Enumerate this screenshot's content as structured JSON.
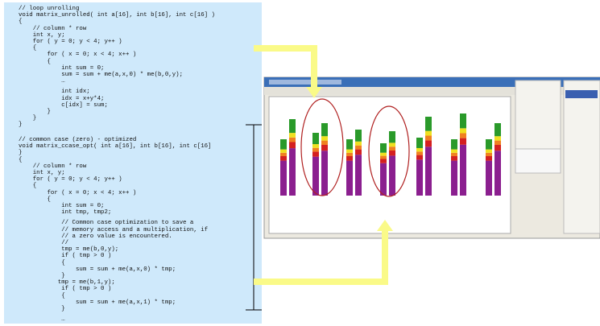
{
  "listings": [
    {
      "groups": [
        [
          "// loop unrolling",
          "void matrix_unrolled( int a[16], int b[16], int c[16] )",
          "{",
          "    // column * row",
          "    int x, y;",
          "    for ( y = 0; y < 4; y++ )",
          "    {",
          "        for ( x = 0; x < 4; x++ )",
          "        {",
          "            int sum = 0;",
          "            sum = sum + me(a,x,0) * me(b,0,y);",
          "            …"
        ],
        [
          "            int idx;",
          "            idx = x+y*4;",
          "            c[idx] = sum;",
          "        }",
          "    }",
          "}"
        ]
      ]
    },
    {
      "groups": [
        [
          "// common case (zero) - optimized",
          "void matrix_ccase_opt( int a[16], int b[16], int c[16]",
          "}",
          "{",
          "    // column * row",
          "    int x, y;",
          "    for ( y = 0; y < 4; y++ )",
          "    {",
          "        for ( x = 0; x < 4; x++ )",
          "        {",
          "            int sum = 0;",
          "            int tmp, tmp2;"
        ],
        [
          "            // Common case optimization to save a",
          "            // memory access and a multiplication, if",
          "            // a zero value is encountered.",
          "            //",
          "            tmp = me(b,0,y);",
          "            if ( tmp > 0 )",
          "            {",
          "                sum = sum + me(a,x,0) * tmp;",
          "            }",
          "           tmp = me(b,1,y);",
          "            if ( tmp > 0 )",
          "            {",
          "                sum = sum + me(a,x,1) * tmp;",
          "            }"
        ],
        [
          "            …"
        ]
      ]
    }
  ]
}
